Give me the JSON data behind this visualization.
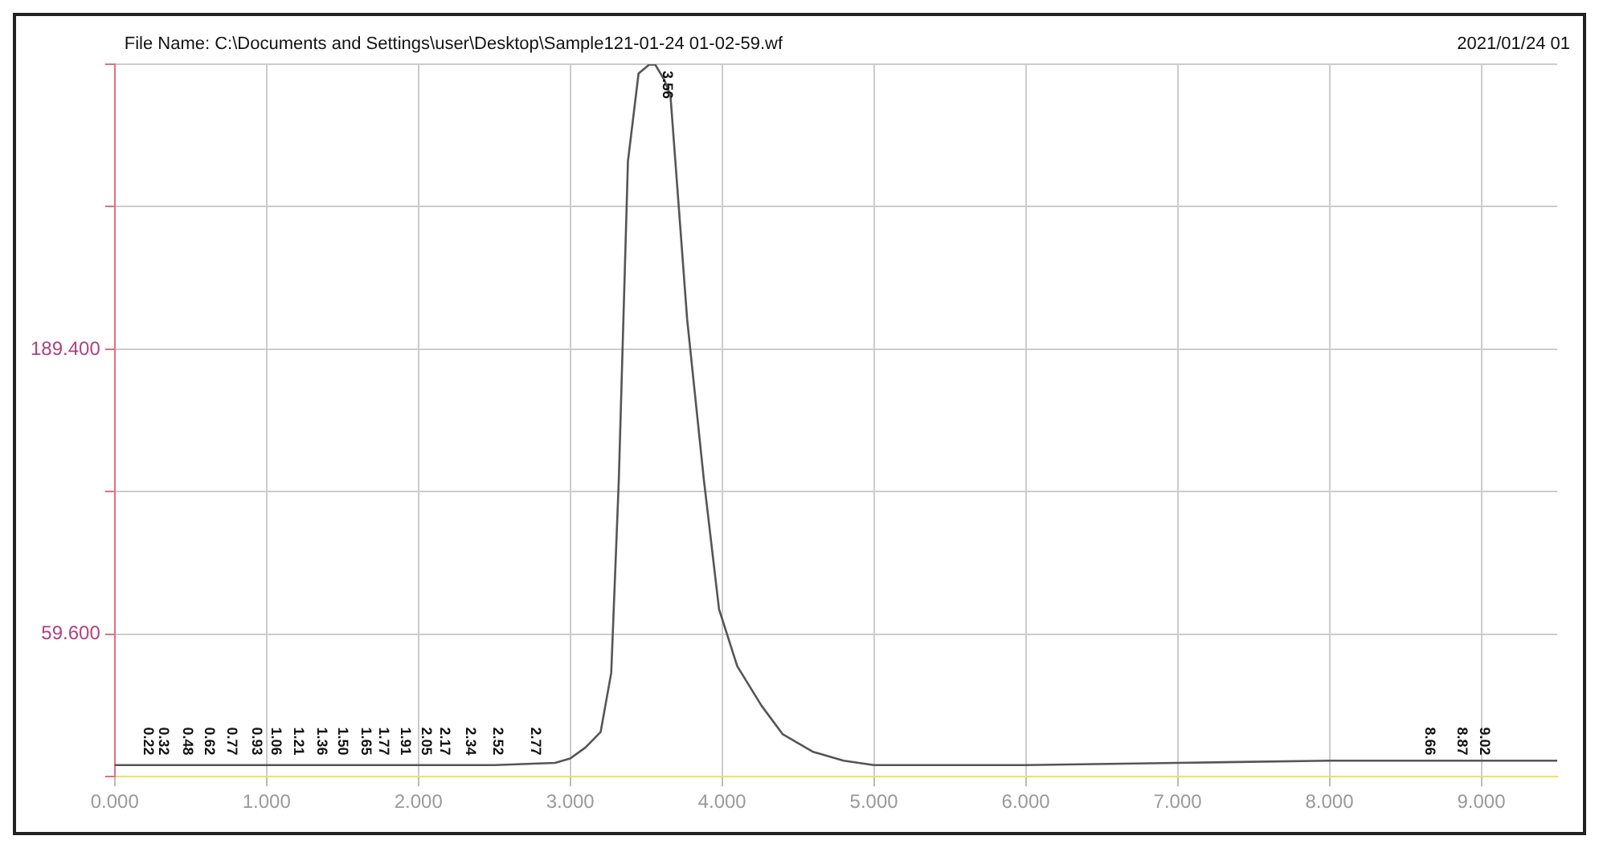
{
  "chart_data": {
    "type": "line",
    "title": "File Name: C:\\Documents and Settings\\user\\Desktop\\Sample121-01-24 01-02-59.wf",
    "subtitle": "2021/01/24 01",
    "x": [
      0,
      0.5,
      1,
      1.5,
      2,
      2.5,
      2.9,
      3.0,
      3.1,
      3.2,
      3.27,
      3.32,
      3.38,
      3.45,
      3.52,
      3.56,
      3.62,
      3.66,
      3.77,
      3.88,
      3.98,
      4.1,
      4.26,
      4.4,
      4.6,
      4.8,
      5.0,
      6.0,
      7.0,
      8.0,
      9.0,
      9.5
    ],
    "series": [
      {
        "color": "#555555",
        "values": [
          0,
          0,
          0,
          0,
          0,
          0,
          1,
          3,
          8,
          15,
          42,
          130,
          275,
          315,
          319,
          319,
          312,
          305,
          203,
          130,
          71,
          45,
          27,
          14,
          6,
          2,
          0,
          0,
          1,
          2,
          2,
          2
        ]
      }
    ],
    "xlim": [
      0,
      9.5
    ],
    "xticks": [
      {
        "value": 0,
        "label": "0.000"
      },
      {
        "value": 1,
        "label": "1.000"
      },
      {
        "value": 2,
        "label": "2.000"
      },
      {
        "value": 3,
        "label": "3.000"
      },
      {
        "value": 4,
        "label": "4.000"
      },
      {
        "value": 5,
        "label": "5.000"
      },
      {
        "value": 6,
        "label": "6.000"
      },
      {
        "value": 7,
        "label": "7.000"
      },
      {
        "value": 8,
        "label": "8.000"
      },
      {
        "value": 9,
        "label": "9.000"
      }
    ],
    "ylim": [
      -5.3,
      319.2
    ],
    "yticks": [
      {
        "value": -5.3,
        "label": null
      },
      {
        "value": 59.6,
        "label": "59.600"
      },
      {
        "value": 124.5,
        "label": null
      },
      {
        "value": 189.4,
        "label": "189.400"
      },
      {
        "value": 254.3,
        "label": null
      },
      {
        "value": 319.2,
        "label": null
      }
    ],
    "grid": true,
    "marker": "none",
    "line_style": "solid",
    "annotations": [
      {
        "text": "0.22",
        "x": 0.22,
        "y": 3
      },
      {
        "text": "0.32",
        "x": 0.32,
        "y": 3
      },
      {
        "text": "0.48",
        "x": 0.48,
        "y": 3
      },
      {
        "text": "0.62",
        "x": 0.62,
        "y": 3
      },
      {
        "text": "0.77",
        "x": 0.77,
        "y": 3
      },
      {
        "text": "0.93",
        "x": 0.93,
        "y": 3
      },
      {
        "text": "1.06",
        "x": 1.06,
        "y": 3
      },
      {
        "text": "1.21",
        "x": 1.21,
        "y": 3
      },
      {
        "text": "1.36",
        "x": 1.36,
        "y": 3
      },
      {
        "text": "1.50",
        "x": 1.5,
        "y": 3
      },
      {
        "text": "1.65",
        "x": 1.65,
        "y": 3
      },
      {
        "text": "1.77",
        "x": 1.77,
        "y": 3
      },
      {
        "text": "1.91",
        "x": 1.91,
        "y": 3
      },
      {
        "text": "2.05",
        "x": 2.05,
        "y": 3
      },
      {
        "text": "2.17",
        "x": 2.17,
        "y": 3
      },
      {
        "text": "2.34",
        "x": 2.34,
        "y": 3
      },
      {
        "text": "2.52",
        "x": 2.52,
        "y": 3
      },
      {
        "text": "2.77",
        "x": 2.77,
        "y": 3
      },
      {
        "text": "3.56",
        "x": 3.56,
        "y": 319
      },
      {
        "text": "8.66",
        "x": 8.66,
        "y": 3
      },
      {
        "text": "8.87",
        "x": 8.87,
        "y": 3
      },
      {
        "text": "9.02",
        "x": 9.02,
        "y": 3
      }
    ]
  }
}
